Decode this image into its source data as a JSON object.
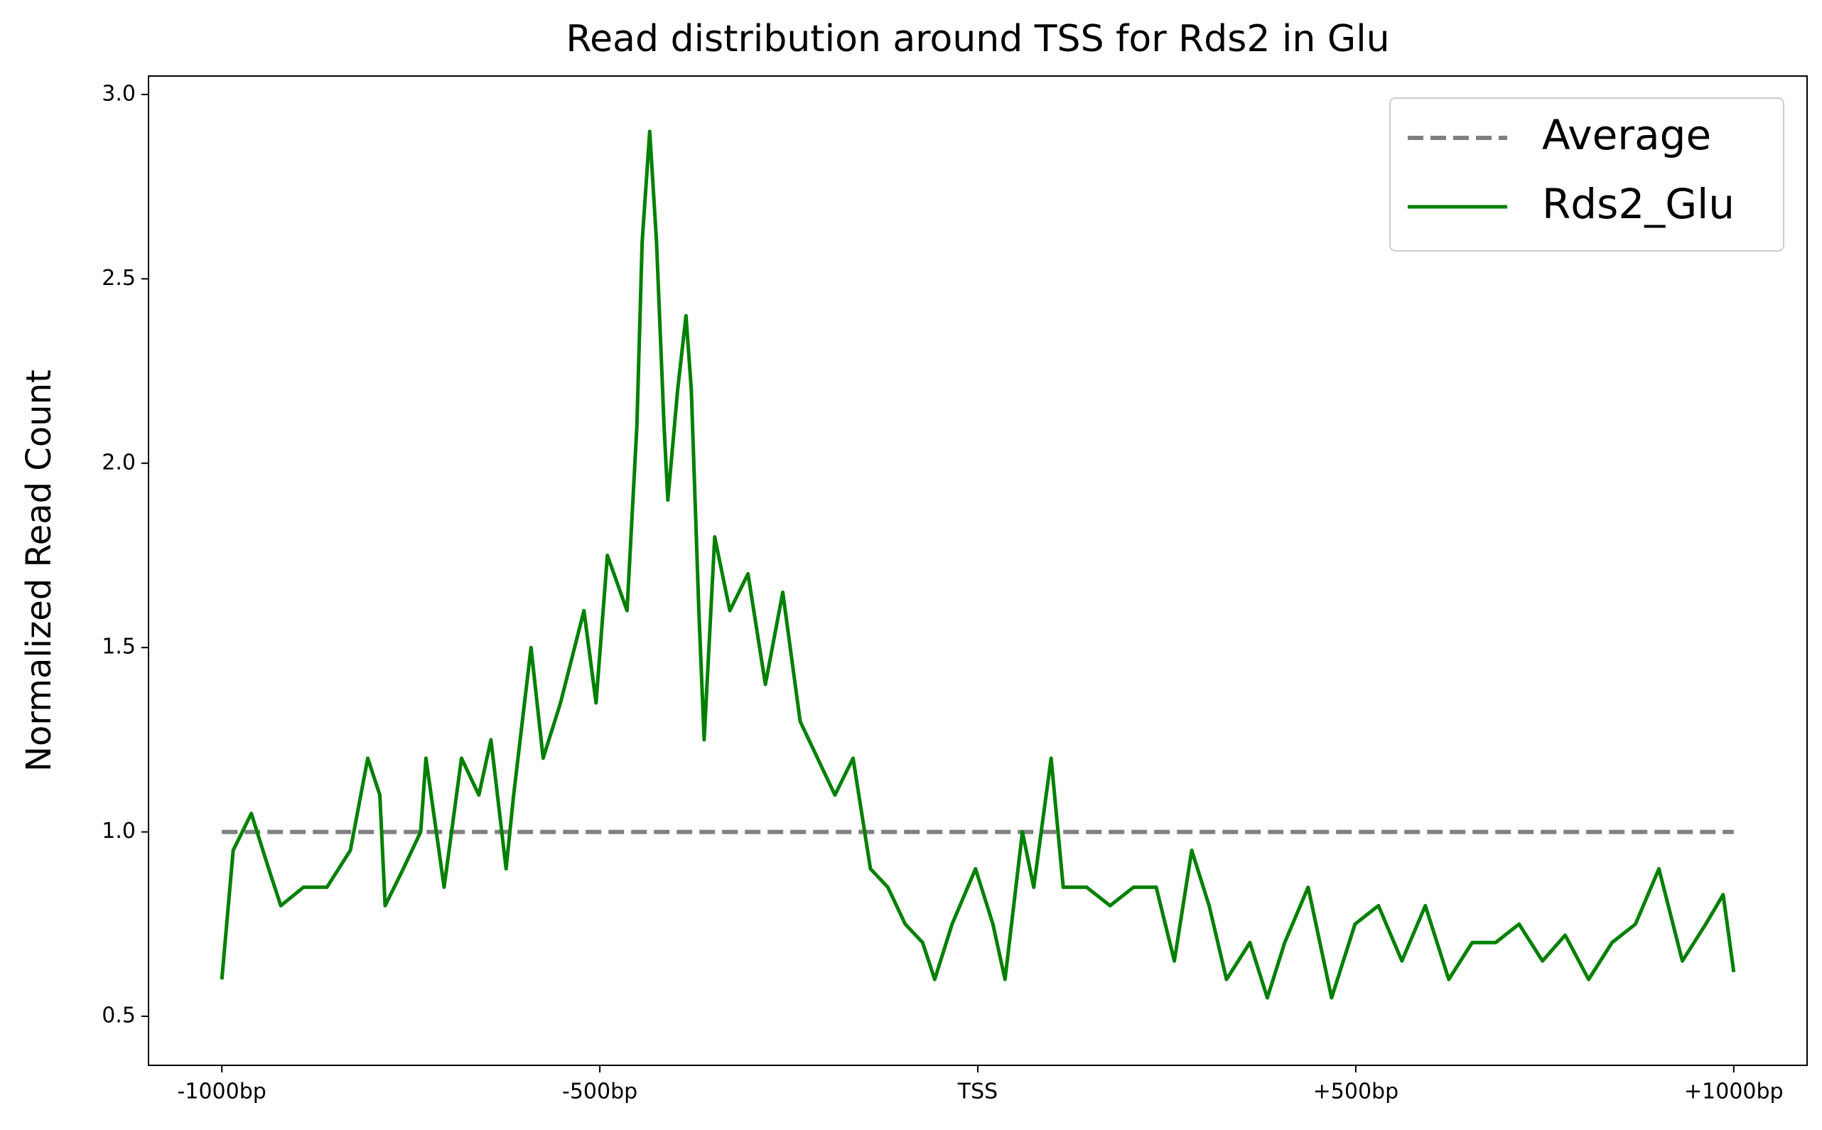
{
  "chart_data": {
    "type": "line",
    "title": "Read distribution around TSS for Rds2 in Glu",
    "y_label": "Normalized Read Count",
    "xlim": [
      -1097,
      1097
    ],
    "ylim": [
      0.367,
      3.05
    ],
    "xticks": [
      {
        "value": -1000,
        "label": "-1000bp"
      },
      {
        "value": -500,
        "label": "-500bp"
      },
      {
        "value": 0,
        "label": "TSS"
      },
      {
        "value": 500,
        "label": "+500bp"
      },
      {
        "value": 1000,
        "label": "+1000bp"
      }
    ],
    "yticks": [
      0.5,
      {
        "value": 1,
        "label": "1.0"
      },
      1.5,
      {
        "value": 2,
        "label": "2.0"
      },
      2.5,
      {
        "value": 3,
        "label": "3.0"
      }
    ],
    "grid": false,
    "legend": "upper right",
    "series": [
      {
        "name": "Average",
        "color": "#808080",
        "dashed": true,
        "x": [
          -1000,
          1000
        ],
        "values": [
          1,
          1
        ]
      },
      {
        "name": "Rds2_Glu",
        "color": "#008000",
        "dashed": false,
        "x": [
          -1000,
          -985,
          -961,
          -938,
          -922,
          -892,
          -861,
          -830,
          -807,
          -791,
          -784,
          -760,
          -737,
          -730,
          -706,
          -683,
          -660,
          -644,
          -624,
          -614,
          -591,
          -575,
          -552,
          -521,
          -505,
          -490,
          -464,
          -451,
          -444,
          -434,
          -425,
          -415,
          -410,
          -397,
          -386,
          -379,
          -369,
          -362,
          -348,
          -328,
          -304,
          -281,
          -258,
          -235,
          -212,
          -189,
          -165,
          -142,
          -119,
          -96,
          -73,
          -57,
          -34,
          -3,
          20,
          36,
          59,
          74,
          97,
          113,
          144,
          175,
          206,
          236,
          260,
          283,
          306,
          329,
          360,
          383,
          406,
          437,
          468,
          499,
          530,
          561,
          592,
          623,
          654,
          685,
          716,
          747,
          777,
          808,
          839,
          870,
          901,
          932,
          963,
          986,
          1000
        ],
        "values": [
          0.6,
          0.95,
          1.05,
          0.9,
          0.8,
          0.85,
          0.85,
          0.95,
          1.2,
          1.1,
          0.8,
          0.9,
          1.0,
          1.2,
          0.85,
          1.2,
          1.1,
          1.25,
          0.9,
          1.1,
          1.5,
          1.2,
          1.35,
          1.6,
          1.35,
          1.75,
          1.6,
          2.1,
          2.6,
          2.9,
          2.6,
          2.1,
          1.9,
          2.2,
          2.4,
          2.2,
          1.6,
          1.25,
          1.8,
          1.6,
          1.7,
          1.4,
          1.65,
          1.3,
          1.2,
          1.1,
          1.2,
          0.9,
          0.85,
          0.75,
          0.7,
          0.6,
          0.75,
          0.9,
          0.75,
          0.6,
          1.0,
          0.85,
          1.2,
          0.85,
          0.85,
          0.8,
          0.85,
          0.85,
          0.65,
          0.95,
          0.8,
          0.6,
          0.7,
          0.55,
          0.7,
          0.85,
          0.55,
          0.75,
          0.8,
          0.65,
          0.8,
          0.6,
          0.7,
          0.7,
          0.75,
          0.65,
          0.72,
          0.6,
          0.7,
          0.75,
          0.9,
          0.65,
          0.75,
          0.83,
          0.62
        ]
      }
    ]
  }
}
